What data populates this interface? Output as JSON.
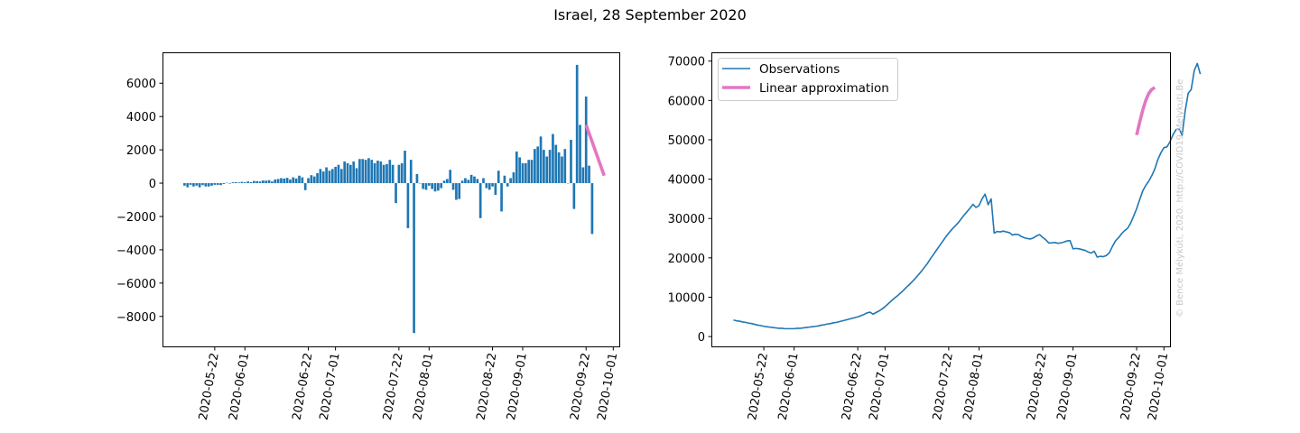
{
  "figure": {
    "title": "Israel, 28 September 2020",
    "watermark": "© Bence Mélykúti, 2020. http://COVID19.Melykuti.Be"
  },
  "chart_data": [
    {
      "type": "bar",
      "title": "",
      "xlabel": "",
      "ylabel": "",
      "x_axis": {
        "type": "date",
        "range": [
          "2020-05-05",
          "2020-10-03"
        ],
        "tick_labels": [
          "2020-05-22",
          "2020-06-01",
          "2020-06-22",
          "2020-07-01",
          "2020-07-22",
          "2020-08-01",
          "2020-08-22",
          "2020-09-01",
          "2020-09-22",
          "2020-10-01"
        ],
        "label_rotation": "vertical"
      },
      "ylim": [
        -9800,
        7800
      ],
      "y_ticks": [
        6000,
        4000,
        2000,
        0,
        -2000,
        -4000,
        -6000,
        -8000
      ],
      "y_tick_labels": [
        "6000",
        "4000",
        "2000",
        "0",
        "−2000",
        "−4000",
        "−6000",
        "−8000"
      ],
      "series": [
        {
          "kind": "bar",
          "color": "#1f77b4",
          "start_date": "2020-05-12",
          "values": [
            -150,
            -250,
            -100,
            -200,
            -150,
            -250,
            -120,
            -200,
            -200,
            -150,
            -100,
            -100,
            -120,
            -50,
            20,
            -30,
            50,
            60,
            40,
            80,
            50,
            100,
            60,
            130,
            120,
            100,
            160,
            150,
            180,
            100,
            220,
            250,
            300,
            280,
            320,
            220,
            350,
            280,
            450,
            350,
            -420,
            300,
            480,
            400,
            600,
            850,
            700,
            950,
            750,
            850,
            980,
            1100,
            850,
            1300,
            1200,
            1100,
            1300,
            900,
            1450,
            1450,
            1400,
            1500,
            1400,
            1200,
            1350,
            1300,
            1100,
            1150,
            1400,
            1100,
            -1200,
            1100,
            1200,
            1950,
            -2700,
            1400,
            -9000,
            550,
            0,
            -350,
            -400,
            -150,
            -350,
            -500,
            -450,
            -300,
            150,
            250,
            800,
            -400,
            -1000,
            -950,
            150,
            300,
            200,
            500,
            400,
            250,
            -2100,
            300,
            -300,
            -400,
            -200,
            -700,
            750,
            -1700,
            450,
            -200,
            300,
            650,
            1900,
            1550,
            1200,
            1200,
            1400,
            1400,
            2050,
            2200,
            2800,
            2000,
            1600,
            2000,
            2950,
            2300,
            1850,
            1600,
            2050,
            0,
            2600,
            -1550,
            7100,
            3500,
            950,
            5200,
            1050,
            -3050
          ]
        },
        {
          "kind": "line",
          "name": "",
          "color": "#e377c2",
          "x": [
            "2020-09-22",
            "2020-09-28"
          ],
          "y": [
            3500,
            450
          ]
        }
      ]
    },
    {
      "type": "line",
      "title": "",
      "xlabel": "",
      "ylabel": "",
      "x_axis": {
        "type": "date",
        "range": [
          "2020-05-05",
          "2020-10-03"
        ],
        "tick_labels": [
          "2020-05-22",
          "2020-06-01",
          "2020-06-22",
          "2020-07-01",
          "2020-07-22",
          "2020-08-01",
          "2020-08-22",
          "2020-09-01",
          "2020-09-22",
          "2020-10-01"
        ],
        "label_rotation": "vertical"
      },
      "ylim": [
        -2500,
        72000
      ],
      "y_ticks": [
        0,
        10000,
        20000,
        30000,
        40000,
        50000,
        60000,
        70000
      ],
      "y_tick_labels": [
        "0",
        "10000",
        "20000",
        "30000",
        "40000",
        "50000",
        "60000",
        "70000"
      ],
      "legend": {
        "placement": "top-left",
        "entries": [
          "Observations",
          "Linear approximation"
        ]
      },
      "series": [
        {
          "name": "Observations",
          "color": "#1f77b4",
          "start_date": "2020-05-12",
          "values": [
            4200,
            4000,
            3900,
            3700,
            3600,
            3400,
            3300,
            3100,
            2900,
            2800,
            2600,
            2500,
            2400,
            2300,
            2200,
            2100,
            2100,
            2000,
            2000,
            2000,
            2000,
            2100,
            2100,
            2200,
            2300,
            2400,
            2500,
            2600,
            2700,
            2900,
            3000,
            3200,
            3300,
            3500,
            3600,
            3800,
            4000,
            4200,
            4400,
            4600,
            4800,
            5000,
            5300,
            5600,
            6000,
            6200,
            5700,
            6100,
            6500,
            7000,
            7600,
            8300,
            9000,
            9700,
            10300,
            11000,
            11700,
            12500,
            13200,
            14000,
            14800,
            15700,
            16600,
            17600,
            18600,
            19800,
            20900,
            22000,
            23100,
            24200,
            25300,
            26300,
            27200,
            28000,
            28800,
            29800,
            30800,
            31700,
            32600,
            33600,
            32800,
            33300,
            35000,
            36200,
            33500,
            35000,
            26300,
            26700,
            26600,
            26800,
            26600,
            26400,
            25800,
            26000,
            25900,
            25400,
            25100,
            24900,
            24800,
            25100,
            25600,
            25900,
            25200,
            24600,
            23800,
            23800,
            23900,
            23700,
            23800,
            24000,
            24300,
            24400,
            22300,
            22400,
            22300,
            22100,
            21900,
            21500,
            21200,
            21700,
            20200,
            20400,
            20300,
            20600,
            21300,
            22900,
            24300,
            25100,
            26100,
            26900,
            27500,
            28800,
            30600,
            32500,
            34800,
            37000,
            38400,
            39500,
            40900,
            42600,
            45000,
            46700,
            48000,
            48200,
            49500,
            51300,
            52600,
            52800,
            51200,
            57300,
            61800,
            62800,
            67600,
            69400,
            66700
          ]
        },
        {
          "name": "Linear approximation",
          "color": "#e377c2",
          "x": [
            "2020-09-22",
            "2020-09-23",
            "2020-09-24",
            "2020-09-25",
            "2020-09-26",
            "2020-09-27",
            "2020-09-28"
          ],
          "y": [
            51200,
            54500,
            57500,
            60000,
            61800,
            62800,
            63300
          ]
        }
      ]
    }
  ]
}
